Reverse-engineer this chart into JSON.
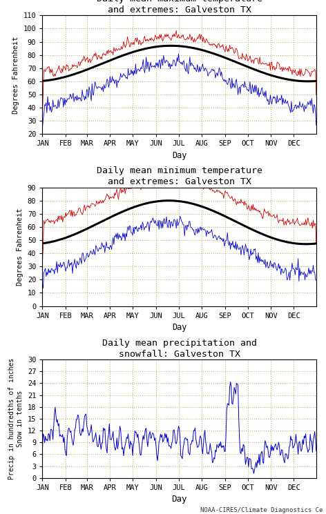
{
  "title1": "Daily mean maximum temperature\nand extremes: Galveston TX",
  "title2": "Daily mean minimum temperature\nand extremes: Galveston TX",
  "title3": "Daily mean precipitation and\nsnowfall: Galveston TX",
  "xlabel": "Day",
  "ylabel1": "Degrees Fahrenheit",
  "ylabel2": "Degrees Fahrenheit",
  "ylabel3": "Precip in hundredths of inches\nSnow in tenths",
  "month_labels": [
    "JAN",
    "FEB",
    "MAR",
    "APR",
    "MAY",
    "JUN",
    "JUL",
    "AUG",
    "SEP",
    "OCT",
    "NOV",
    "DEC"
  ],
  "bg_color": "#ffffff",
  "grid_color": "#b0b060",
  "line_color_red": "#cc0000",
  "line_color_blue": "#0000cc",
  "line_color_black": "#000000",
  "footer": "NOAA-CIRES/Climate Diagnostics Ce",
  "plot1_ylim": [
    20,
    110
  ],
  "plot1_yticks": [
    20,
    30,
    40,
    50,
    60,
    70,
    80,
    90,
    100,
    110
  ],
  "plot2_ylim": [
    0,
    90
  ],
  "plot2_yticks": [
    0,
    10,
    20,
    30,
    40,
    50,
    60,
    70,
    80,
    90
  ],
  "plot3_ylim": [
    0,
    30
  ],
  "plot3_yticks": [
    0,
    3,
    6,
    9,
    12,
    15,
    18,
    21,
    24,
    27,
    30
  ],
  "month_days": [
    0,
    31,
    59,
    90,
    120,
    151,
    181,
    212,
    243,
    273,
    304,
    334
  ]
}
